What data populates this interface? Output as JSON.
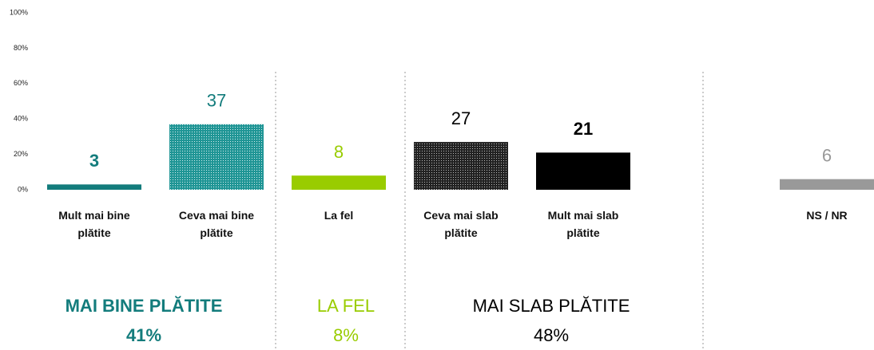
{
  "chart_data": {
    "type": "bar",
    "categories": [
      "Mult mai bine plătite",
      "Ceva mai bine plătite",
      "La fel",
      "Ceva mai slab plătite",
      "Mult mai slab plătite",
      "NS / NR"
    ],
    "values": [
      3,
      37,
      8,
      27,
      21,
      6
    ],
    "colors": [
      "#137c7c",
      "#1f9595",
      "#99cc00",
      "#222222",
      "#000000",
      "#999999"
    ],
    "textured": [
      false,
      true,
      false,
      true,
      false,
      false
    ],
    "ylim": [
      0,
      100
    ],
    "yticks": [
      {
        "value": 0,
        "label": "0%"
      },
      {
        "value": 20,
        "label": "20%"
      },
      {
        "value": 40,
        "label": "40%"
      },
      {
        "value": 60,
        "label": "60%"
      },
      {
        "value": 80,
        "label": "80%"
      },
      {
        "value": 100,
        "label": "100%"
      }
    ],
    "grid": false,
    "groups": [
      {
        "name": "MAI BINE PLĂTITE",
        "total": "41%"
      },
      {
        "name": "LA FEL",
        "total": "8%"
      },
      {
        "name": "MAI SLAB PLĂTITE",
        "total": "48%"
      }
    ]
  }
}
